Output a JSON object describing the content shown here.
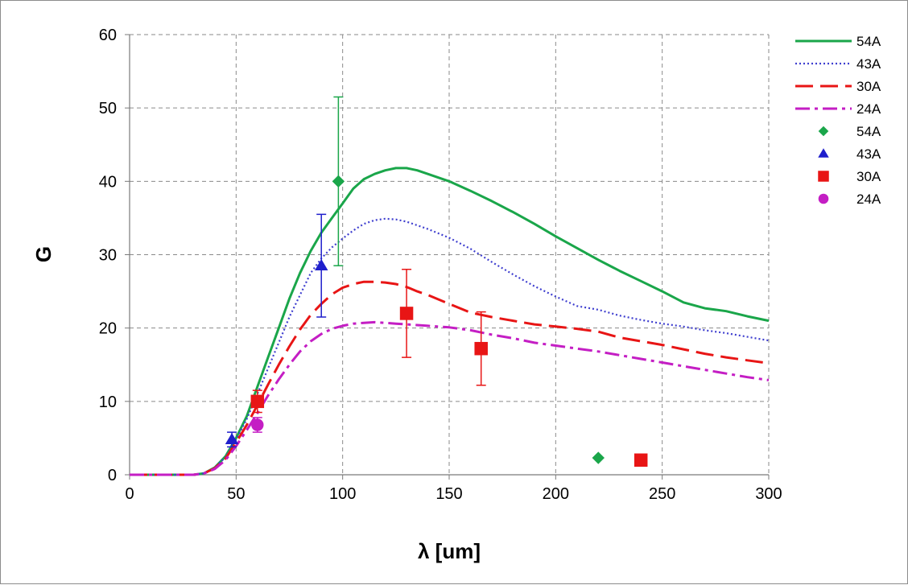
{
  "chart_data": {
    "type": "line",
    "title": "",
    "xlabel": "λ [um]",
    "ylabel": "G",
    "xlim": [
      0,
      300
    ],
    "ylim": [
      0,
      60
    ],
    "x_ticks": [
      "0",
      "50",
      "100",
      "150",
      "200",
      "250",
      "300"
    ],
    "y_ticks": [
      "0",
      "10",
      "20",
      "30",
      "40",
      "50",
      "60"
    ],
    "grid": true,
    "legend_position": "right",
    "lines": [
      {
        "name": "54A",
        "color": "#1aa64a",
        "dash": "solid",
        "x": [
          0,
          30,
          35,
          40,
          45,
          50,
          55,
          60,
          65,
          70,
          75,
          80,
          85,
          90,
          95,
          100,
          105,
          110,
          115,
          120,
          125,
          130,
          135,
          140,
          150,
          160,
          170,
          180,
          190,
          200,
          210,
          220,
          230,
          240,
          250,
          260,
          270,
          280,
          290,
          300
        ],
        "y": [
          0,
          0,
          0.2,
          1,
          2.5,
          5,
          8,
          12,
          16,
          20,
          24,
          27.5,
          30.5,
          33,
          35,
          37,
          39,
          40.3,
          41,
          41.5,
          41.8,
          41.8,
          41.5,
          41,
          40,
          38.7,
          37.3,
          35.8,
          34.2,
          32.5,
          30.9,
          29.3,
          27.8,
          26.4,
          25,
          23.5,
          22.7,
          22.3,
          21.6,
          21
        ]
      },
      {
        "name": "43A",
        "color": "#3f3fcf",
        "dash": "dotted",
        "x": [
          0,
          30,
          35,
          40,
          45,
          50,
          55,
          60,
          65,
          70,
          75,
          80,
          85,
          90,
          95,
          100,
          105,
          110,
          115,
          120,
          125,
          130,
          135,
          140,
          150,
          160,
          170,
          180,
          190,
          200,
          210,
          220,
          230,
          240,
          250,
          260,
          270,
          280,
          290,
          300
        ],
        "y": [
          0,
          0,
          0.2,
          1,
          2.4,
          4.8,
          7.6,
          11,
          14.5,
          18,
          21.5,
          24.5,
          27.5,
          29.5,
          31,
          32.2,
          33.3,
          34.2,
          34.7,
          34.9,
          34.8,
          34.5,
          34,
          33.5,
          32.3,
          30.8,
          29,
          27.3,
          25.7,
          24.3,
          23,
          22.5,
          21.7,
          21.1,
          20.6,
          20.2,
          19.7,
          19.3,
          18.8,
          18.3
        ]
      },
      {
        "name": "30A",
        "color": "#e81515",
        "dash": "long-dash",
        "x": [
          0,
          30,
          35,
          40,
          45,
          50,
          55,
          60,
          65,
          70,
          75,
          80,
          85,
          90,
          95,
          100,
          105,
          110,
          115,
          120,
          125,
          130,
          135,
          140,
          150,
          160,
          170,
          180,
          190,
          200,
          210,
          220,
          230,
          240,
          250,
          260,
          270,
          280,
          290,
          300
        ],
        "y": [
          0,
          0,
          0.2,
          0.9,
          2.2,
          4.4,
          6.8,
          9.5,
          12.3,
          15,
          17.5,
          19.8,
          21.8,
          23.3,
          24.6,
          25.5,
          26,
          26.3,
          26.3,
          26.2,
          26,
          25.6,
          25,
          24.5,
          23.3,
          22.1,
          21.5,
          21,
          20.5,
          20.2,
          19.9,
          19.5,
          18.7,
          18.2,
          17.7,
          17.1,
          16.5,
          16,
          15.6,
          15.2
        ]
      },
      {
        "name": "24A",
        "color": "#c41ec4",
        "dash": "dash-dot",
        "x": [
          0,
          30,
          35,
          40,
          45,
          50,
          55,
          60,
          65,
          70,
          75,
          80,
          85,
          90,
          95,
          100,
          105,
          110,
          115,
          120,
          125,
          130,
          135,
          140,
          150,
          160,
          170,
          180,
          190,
          200,
          210,
          220,
          230,
          240,
          250,
          260,
          270,
          280,
          290,
          300
        ],
        "y": [
          0,
          0,
          0.2,
          0.8,
          2,
          3.9,
          6.1,
          8.4,
          10.8,
          13,
          15,
          16.8,
          18.2,
          19.2,
          19.9,
          20.3,
          20.6,
          20.7,
          20.8,
          20.7,
          20.6,
          20.5,
          20.4,
          20.3,
          20.1,
          19.7,
          19.1,
          18.6,
          18,
          17.6,
          17.2,
          16.8,
          16.3,
          15.8,
          15.3,
          14.8,
          14.3,
          13.8,
          13.3,
          12.9
        ]
      }
    ],
    "points": [
      {
        "name": "54A",
        "color": "#1aa64a",
        "marker": "diamond",
        "data": [
          {
            "x": 98,
            "y": 40,
            "err_low": 11.5,
            "err_high": 11.5
          },
          {
            "x": 220,
            "y": 2.3
          }
        ]
      },
      {
        "name": "43A",
        "color": "#1f1fcc",
        "marker": "triangle",
        "data": [
          {
            "x": 48,
            "y": 4.8,
            "err_low": 1,
            "err_high": 1
          },
          {
            "x": 90,
            "y": 28.5,
            "err_low": 7,
            "err_high": 7
          }
        ]
      },
      {
        "name": "30A",
        "color": "#e81515",
        "marker": "square",
        "data": [
          {
            "x": 60,
            "y": 10,
            "err_low": 1.5,
            "err_high": 1.5
          },
          {
            "x": 130,
            "y": 22,
            "err_low": 6,
            "err_high": 6
          },
          {
            "x": 165,
            "y": 17.2,
            "err_low": 5,
            "err_high": 5
          },
          {
            "x": 240,
            "y": 2
          }
        ]
      },
      {
        "name": "24A",
        "color": "#c41ec4",
        "marker": "circle",
        "data": [
          {
            "x": 60,
            "y": 6.8,
            "err_low": 1,
            "err_high": 1
          }
        ]
      }
    ]
  }
}
